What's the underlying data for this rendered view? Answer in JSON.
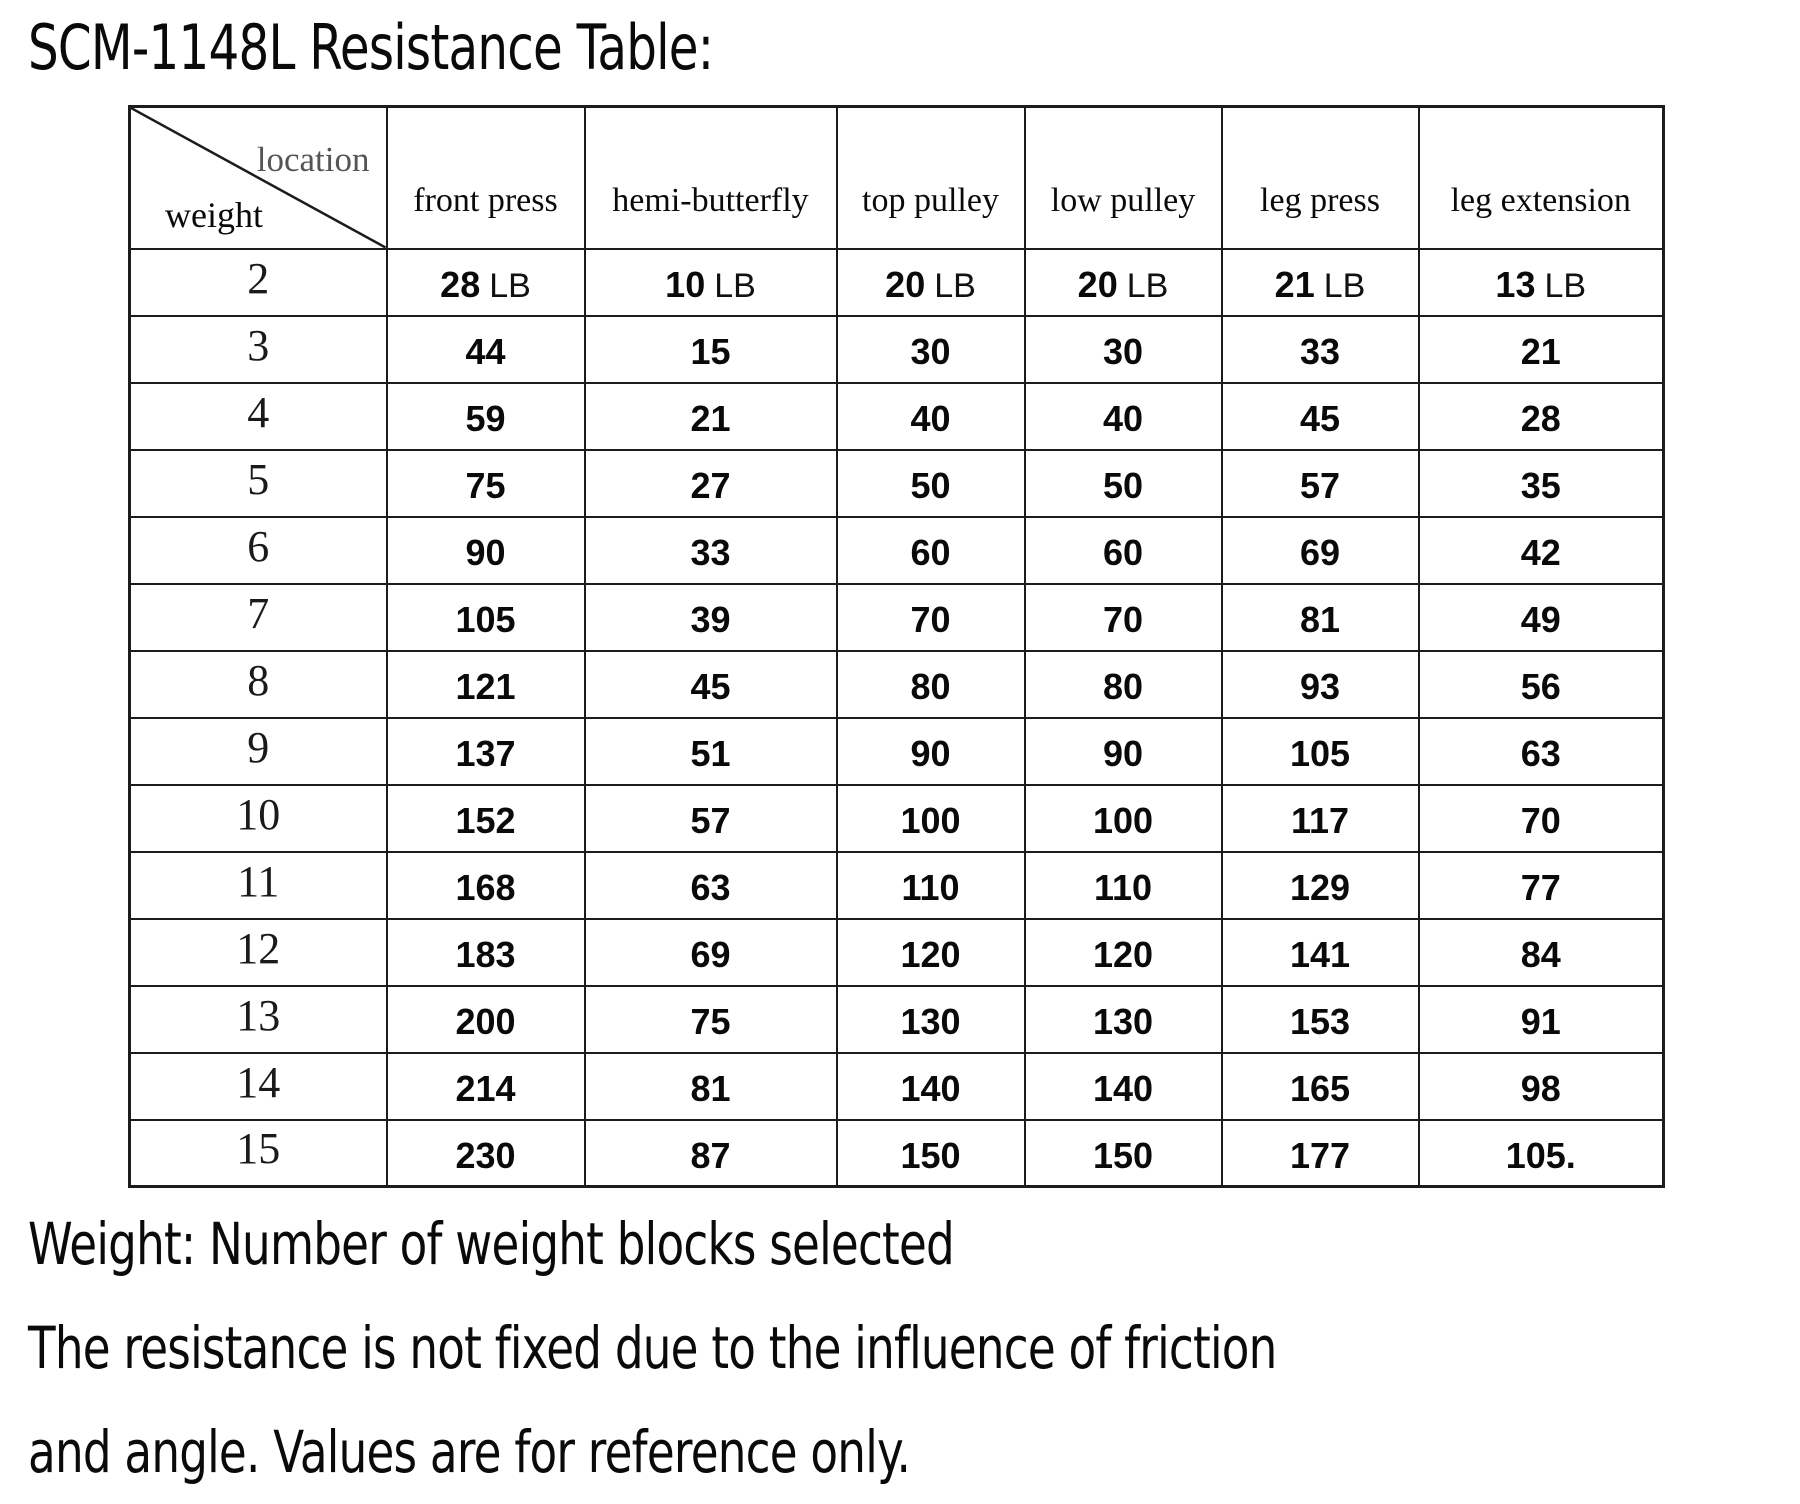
{
  "title": "SCM-1148L Resistance Table:",
  "table": {
    "corner": {
      "top_label": "location",
      "bottom_label": "weight"
    },
    "columns": [
      "front press",
      "hemi-butterfly",
      "top pulley",
      "low pulley",
      "leg press",
      "leg extension"
    ],
    "rows": [
      {
        "weight": "2",
        "unit": "LB",
        "values": [
          "28",
          "10",
          "20",
          "20",
          "21",
          "13"
        ]
      },
      {
        "weight": "3",
        "values": [
          "44",
          "15",
          "30",
          "30",
          "33",
          "21"
        ]
      },
      {
        "weight": "4",
        "values": [
          "59",
          "21",
          "40",
          "40",
          "45",
          "28"
        ]
      },
      {
        "weight": "5",
        "values": [
          "75",
          "27",
          "50",
          "50",
          "57",
          "35"
        ]
      },
      {
        "weight": "6",
        "values": [
          "90",
          "33",
          "60",
          "60",
          "69",
          "42"
        ]
      },
      {
        "weight": "7",
        "values": [
          "105",
          "39",
          "70",
          "70",
          "81",
          "49"
        ]
      },
      {
        "weight": "8",
        "values": [
          "121",
          "45",
          "80",
          "80",
          "93",
          "56"
        ]
      },
      {
        "weight": "9",
        "values": [
          "137",
          "51",
          "90",
          "90",
          "105",
          "63"
        ]
      },
      {
        "weight": "10",
        "values": [
          "152",
          "57",
          "100",
          "100",
          "117",
          "70"
        ]
      },
      {
        "weight": "11",
        "values": [
          "168",
          "63",
          "110",
          "110",
          "129",
          "77"
        ]
      },
      {
        "weight": "12",
        "values": [
          "183",
          "69",
          "120",
          "120",
          "141",
          "84"
        ]
      },
      {
        "weight": "13",
        "values": [
          "200",
          "75",
          "130",
          "130",
          "153",
          "91"
        ]
      },
      {
        "weight": "14",
        "values": [
          "214",
          "81",
          "140",
          "140",
          "165",
          "98"
        ]
      },
      {
        "weight": "15",
        "values": [
          "230",
          "87",
          "150",
          "150",
          "177",
          "105."
        ]
      }
    ]
  },
  "notes": [
    "Weight: Number of weight blocks selected",
    "The resistance is not fixed due to the influence of friction",
    "and angle. Values are for reference only."
  ],
  "colors": {
    "text": "#0a0a0a",
    "border": "#1c1c1c",
    "corner_location_label": "#555555",
    "background": "#ffffff"
  }
}
